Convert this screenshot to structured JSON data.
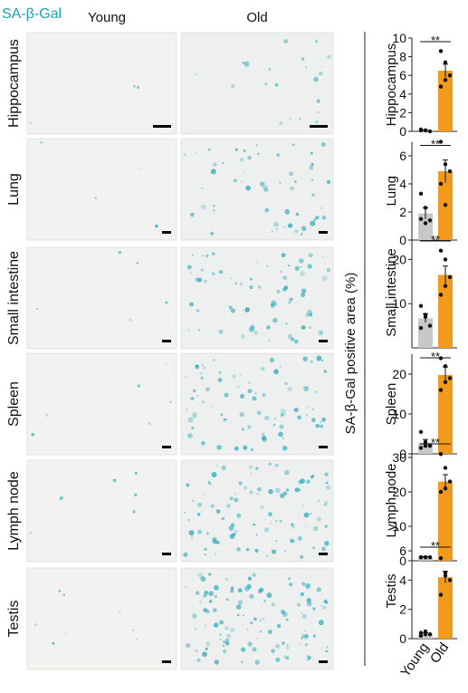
{
  "figure": {
    "title": "SA-β-Gal",
    "columns": [
      "Young",
      "Old"
    ],
    "row_labels": [
      "Hippocampus",
      "Lung",
      "Small intestine",
      "Spleen",
      "Lymph node",
      "Testis"
    ],
    "y_label": "SA-β-Gal positive area (%)",
    "categories": [
      "Young",
      "Old"
    ],
    "colors": [
      "#c8c8c8",
      "#f29a1c"
    ]
  },
  "chart_data": [
    {
      "type": "bar",
      "label": "Hippocampus",
      "values": [
        0.1,
        6.5
      ],
      "errors": [
        0.05,
        0.7
      ],
      "points": [
        [
          0.1,
          0.1,
          0,
          0.2,
          0.1
        ],
        [
          8.6,
          7.4,
          6,
          4.8,
          5.5
        ]
      ],
      "ylim": [
        0,
        10
      ],
      "yticks": [
        0,
        2,
        4,
        6,
        8,
        10
      ],
      "annotation": "**"
    },
    {
      "type": "bar",
      "label": "Lung",
      "values": [
        1.9,
        4.9
      ],
      "errors": [
        0.4,
        0.8
      ],
      "points": [
        [
          3.3,
          2.3,
          1.4,
          1.5,
          1.2
        ],
        [
          7,
          5.4,
          4.9,
          4,
          2.5
        ]
      ],
      "ylim": [
        0,
        7
      ],
      "yticks": [
        0,
        2,
        4,
        6
      ],
      "annotation": "**"
    },
    {
      "type": "bar",
      "label": "Small intestine",
      "values": [
        6.7,
        16.5
      ],
      "errors": [
        1,
        2
      ],
      "points": [
        [
          9.5,
          7.5,
          5,
          4.5,
          7
        ],
        [
          22,
          20,
          16,
          12,
          14
        ]
      ],
      "ylim": [
        0,
        25
      ],
      "yticks": [
        10,
        20
      ],
      "annotation": "**"
    },
    {
      "type": "bar",
      "label": "Spleen",
      "values": [
        2.8,
        19.8
      ],
      "errors": [
        0.8,
        2
      ],
      "points": [
        [
          5.5,
          3,
          2,
          1.5,
          2
        ],
        [
          24,
          22,
          19,
          16,
          18
        ]
      ],
      "ylim": [
        0,
        25
      ],
      "yticks": [
        0,
        10,
        20
      ],
      "annotation": "**"
    },
    {
      "type": "bar",
      "label": "Lymph node",
      "values": [
        1,
        23
      ],
      "errors": [
        0.2,
        2
      ],
      "points": [
        [
          1,
          1,
          1,
          1,
          1
        ],
        [
          31,
          27,
          23,
          20,
          21
        ]
      ],
      "ylim": [
        0,
        35
      ],
      "yticks": [
        0,
        10,
        20,
        30
      ],
      "annotation": "**"
    },
    {
      "type": "bar",
      "label": "Testis",
      "values": [
        0.3,
        4.2
      ],
      "errors": [
        0.1,
        0.4
      ],
      "points": [
        [
          0.4,
          0.5,
          0.3,
          0.2,
          0.3
        ],
        [
          5.5,
          4.5,
          4,
          3,
          4.3
        ]
      ],
      "ylim": [
        0,
        6.5
      ],
      "yticks": [
        0,
        2,
        4,
        6
      ],
      "annotation": "**"
    }
  ]
}
